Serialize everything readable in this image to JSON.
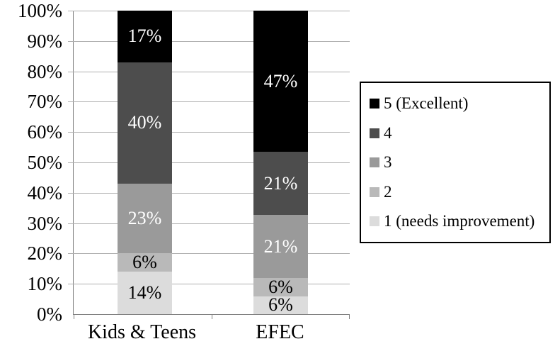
{
  "chart_data": {
    "type": "stacked-bar-100",
    "title": "",
    "categories": [
      "Kids & Teens",
      "EFEC"
    ],
    "y_axis": {
      "ticks": [
        "100%",
        "90%",
        "80%",
        "70%",
        "60%",
        "50%",
        "40%",
        "30%",
        "20%",
        "10%",
        "0%"
      ],
      "min": 0,
      "max": 100,
      "grid": true
    },
    "series": [
      {
        "name": "5 (Excellent)",
        "color": "#000000",
        "label_color": "#ffffff",
        "values": [
          17,
          47
        ],
        "data_labels": [
          "17%",
          "47%"
        ]
      },
      {
        "name": "4",
        "color": "#4d4d4d",
        "label_color": "#ffffff",
        "values": [
          40,
          21
        ],
        "data_labels": [
          "40%",
          "21%"
        ]
      },
      {
        "name": "3",
        "color": "#9a9a9a",
        "label_color": "#ffffff",
        "values": [
          23,
          21
        ],
        "data_labels": [
          "23%",
          "21%"
        ]
      },
      {
        "name": "2",
        "color": "#b9b9b9",
        "label_color": "#000000",
        "values": [
          6,
          6
        ],
        "data_labels": [
          "6%",
          "6%"
        ]
      },
      {
        "name": "1 (needs improvement)",
        "color": "#dcdcdc",
        "label_color": "#000000",
        "values": [
          14,
          6
        ],
        "data_labels": [
          "14%",
          "6%"
        ]
      }
    ],
    "legend": {
      "position": "right",
      "entries": [
        "5 (Excellent)",
        "4",
        "3",
        "2",
        "1 (needs improvement)"
      ]
    },
    "colors": {
      "background": "#ffffff",
      "gridline": "#b0b0b0",
      "axis": "#808080",
      "text": "#000000"
    }
  }
}
